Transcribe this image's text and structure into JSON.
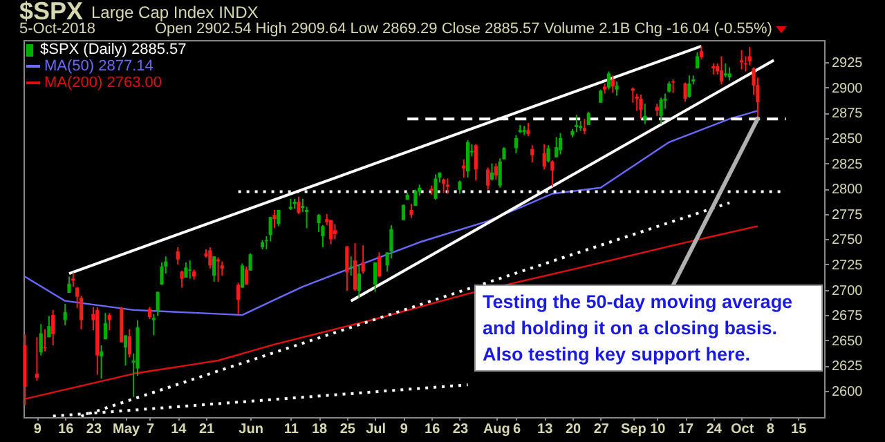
{
  "chart_data": {
    "type": "candlestick",
    "title": "$SPX",
    "subtitle": "Large Cap Index INDX",
    "annotations": [
      "5-Oct-2018",
      "Open 2902.54 High 2909.64 Low 2869.29 Close 2885.57 Volume 2.1B Chg -16.04 (-0.55%)",
      {
        "text": "Testing the 50-day moving average and holding it on a closing basis. Also testing key support here.",
        "x": "2018-10-05",
        "y": 2869.29
      }
    ],
    "xlim": [
      "2018-04-05T16:00",
      "2018-10-21T12:00"
    ],
    "xticks": [
      {
        "value": "2018-04-09",
        "label": "9"
      },
      {
        "value": "2018-04-16",
        "label": "16"
      },
      {
        "value": "2018-04-23",
        "label": "23"
      },
      {
        "value": "2018-05-01",
        "label": "May"
      },
      {
        "value": "2018-05-07",
        "label": "7"
      },
      {
        "value": "2018-05-14",
        "label": "14"
      },
      {
        "value": "2018-05-21",
        "label": "21"
      },
      {
        "value": "2018-06-01",
        "label": "Jun"
      },
      {
        "value": "2018-06-11",
        "label": "11"
      },
      {
        "value": "2018-06-18",
        "label": "18"
      },
      {
        "value": "2018-06-25",
        "label": "25"
      },
      {
        "value": "2018-07-02",
        "label": "Jul"
      },
      {
        "value": "2018-07-09",
        "label": "9"
      },
      {
        "value": "2018-07-16",
        "label": "16"
      },
      {
        "value": "2018-07-23",
        "label": "23"
      },
      {
        "value": "2018-08-01",
        "label": "Aug"
      },
      {
        "value": "2018-08-06",
        "label": "6"
      },
      {
        "value": "2018-08-13",
        "label": "13"
      },
      {
        "value": "2018-08-20",
        "label": "20"
      },
      {
        "value": "2018-08-27",
        "label": "27"
      },
      {
        "value": "2018-09-04",
        "label": "Sep"
      },
      {
        "value": "2018-09-10",
        "label": "10"
      },
      {
        "value": "2018-09-17",
        "label": "17"
      },
      {
        "value": "2018-09-24",
        "label": "24"
      },
      {
        "value": "2018-10-01",
        "label": "Oct"
      },
      {
        "value": "2018-10-08",
        "label": "8"
      },
      {
        "value": "2018-10-15",
        "label": "15"
      }
    ],
    "ylim": [
      2574,
      2947
    ],
    "yticks": [
      2600,
      2625,
      2650,
      2675,
      2700,
      2725,
      2750,
      2775,
      2800,
      2825,
      2850,
      2875,
      2900,
      2925
    ],
    "legend": "top left",
    "series": [
      {
        "name": "$SPX (Daily) 2885.57",
        "type": "candlestick",
        "color": "#00b000",
        "x": [
          "2018-04-06",
          "2018-04-09",
          "2018-04-10",
          "2018-04-11",
          "2018-04-12",
          "2018-04-13",
          "2018-04-16",
          "2018-04-17",
          "2018-04-18",
          "2018-04-19",
          "2018-04-20",
          "2018-04-23",
          "2018-04-24",
          "2018-04-25",
          "2018-04-26",
          "2018-04-27",
          "2018-04-30",
          "2018-05-01",
          "2018-05-02",
          "2018-05-03",
          "2018-05-04",
          "2018-05-07",
          "2018-05-08",
          "2018-05-09",
          "2018-05-10",
          "2018-05-11",
          "2018-05-14",
          "2018-05-15",
          "2018-05-16",
          "2018-05-17",
          "2018-05-18",
          "2018-05-21",
          "2018-05-22",
          "2018-05-23",
          "2018-05-24",
          "2018-05-25",
          "2018-05-29",
          "2018-05-30",
          "2018-05-31",
          "2018-06-01",
          "2018-06-04",
          "2018-06-05",
          "2018-06-06",
          "2018-06-07",
          "2018-06-08",
          "2018-06-11",
          "2018-06-12",
          "2018-06-13",
          "2018-06-14",
          "2018-06-15",
          "2018-06-18",
          "2018-06-19",
          "2018-06-20",
          "2018-06-21",
          "2018-06-22",
          "2018-06-25",
          "2018-06-26",
          "2018-06-27",
          "2018-06-28",
          "2018-06-29",
          "2018-07-02",
          "2018-07-03",
          "2018-07-05",
          "2018-07-06",
          "2018-07-09",
          "2018-07-10",
          "2018-07-11",
          "2018-07-12",
          "2018-07-13",
          "2018-07-16",
          "2018-07-17",
          "2018-07-18",
          "2018-07-19",
          "2018-07-20",
          "2018-07-23",
          "2018-07-24",
          "2018-07-25",
          "2018-07-26",
          "2018-07-27",
          "2018-07-30",
          "2018-07-31",
          "2018-08-01",
          "2018-08-02",
          "2018-08-03",
          "2018-08-06",
          "2018-08-07",
          "2018-08-08",
          "2018-08-09",
          "2018-08-10",
          "2018-08-13",
          "2018-08-14",
          "2018-08-15",
          "2018-08-16",
          "2018-08-17",
          "2018-08-20",
          "2018-08-21",
          "2018-08-22",
          "2018-08-23",
          "2018-08-24",
          "2018-08-27",
          "2018-08-28",
          "2018-08-29",
          "2018-08-30",
          "2018-08-31",
          "2018-09-04",
          "2018-09-05",
          "2018-09-06",
          "2018-09-07",
          "2018-09-10",
          "2018-09-11",
          "2018-09-12",
          "2018-09-13",
          "2018-09-14",
          "2018-09-17",
          "2018-09-18",
          "2018-09-19",
          "2018-09-20",
          "2018-09-21",
          "2018-09-24",
          "2018-09-25",
          "2018-09-26",
          "2018-09-27",
          "2018-09-28",
          "2018-10-01",
          "2018-10-02",
          "2018-10-03",
          "2018-10-04",
          "2018-10-05"
        ],
        "ohlc": [
          [
            2645,
            2656,
            2586,
            2604
          ],
          [
            2617,
            2653,
            2610,
            2613
          ],
          [
            2638,
            2666,
            2635,
            2657
          ],
          [
            2643,
            2661,
            2639,
            2642
          ],
          [
            2653,
            2674,
            2653,
            2664
          ],
          [
            2675,
            2680,
            2645,
            2656
          ],
          [
            2670,
            2686,
            2665,
            2678
          ],
          [
            2697,
            2713,
            2697,
            2706
          ],
          [
            2711,
            2717,
            2703,
            2709
          ],
          [
            2702,
            2703,
            2682,
            2693
          ],
          [
            2692,
            2694,
            2661,
            2670
          ],
          [
            2676,
            2683,
            2660,
            2670
          ],
          [
            2680,
            2683,
            2616,
            2635
          ],
          [
            2634,
            2645,
            2612,
            2639
          ],
          [
            2651,
            2677,
            2651,
            2667
          ],
          [
            2675,
            2677,
            2660,
            2670
          ],
          [
            2682,
            2683,
            2648,
            2648
          ],
          [
            2643,
            2655,
            2625,
            2655
          ],
          [
            2654,
            2661,
            2633,
            2636
          ],
          [
            2628,
            2637,
            2594,
            2630
          ],
          [
            2622,
            2670,
            2615,
            2663
          ],
          [
            2681,
            2683,
            2671,
            2673
          ],
          [
            2670,
            2676,
            2655,
            2672
          ],
          [
            2679,
            2698,
            2674,
            2698
          ],
          [
            2705,
            2727,
            2705,
            2723
          ],
          [
            2723,
            2733,
            2716,
            2728
          ],
          [
            2738,
            2742,
            2725,
            2730
          ],
          [
            2718,
            2719,
            2702,
            2711
          ],
          [
            2712,
            2727,
            2712,
            2722
          ],
          [
            2719,
            2729,
            2711,
            2720
          ],
          [
            2718,
            2720,
            2710,
            2713
          ],
          [
            2736,
            2740,
            2732,
            2733
          ],
          [
            2739,
            2742,
            2721,
            2724
          ],
          [
            2714,
            2733,
            2708,
            2733
          ],
          [
            2730,
            2732,
            2708,
            2728
          ],
          [
            2724,
            2728,
            2714,
            2721
          ],
          [
            2705,
            2707,
            2676,
            2690
          ],
          [
            2702,
            2726,
            2702,
            2724
          ],
          [
            2720,
            2723,
            2705,
            2705
          ],
          [
            2719,
            2736,
            2719,
            2735
          ],
          [
            2742,
            2749,
            2740,
            2747
          ],
          [
            2748,
            2753,
            2740,
            2749
          ],
          [
            2754,
            2772,
            2748,
            2772
          ],
          [
            2774,
            2779,
            2761,
            2770
          ],
          [
            2765,
            2779,
            2763,
            2779
          ],
          [
            2780,
            2790,
            2779,
            2782
          ],
          [
            2785,
            2790,
            2780,
            2787
          ],
          [
            2787,
            2792,
            2775,
            2776
          ],
          [
            2781,
            2790,
            2777,
            2783
          ],
          [
            2777,
            2782,
            2761,
            2779
          ],
          [
            2766,
            2775,
            2757,
            2774
          ],
          [
            2753,
            2764,
            2742,
            2763
          ],
          [
            2770,
            2775,
            2764,
            2767
          ],
          [
            2769,
            2769,
            2745,
            2750
          ],
          [
            2759,
            2765,
            2750,
            2755
          ],
          [
            2743,
            2743,
            2699,
            2717
          ],
          [
            2722,
            2733,
            2714,
            2723
          ],
          [
            2729,
            2746,
            2699,
            2700
          ],
          [
            2699,
            2725,
            2692,
            2716
          ],
          [
            2727,
            2744,
            2716,
            2718
          ],
          [
            2705,
            2727,
            2698,
            2727
          ],
          [
            2733,
            2737,
            2713,
            2713
          ],
          [
            2724,
            2737,
            2718,
            2737
          ],
          [
            2738,
            2764,
            2731,
            2760
          ],
          [
            2769,
            2784,
            2769,
            2784
          ],
          [
            2789,
            2796,
            2789,
            2794
          ],
          [
            2779,
            2785,
            2771,
            2774
          ],
          [
            2783,
            2799,
            2783,
            2798
          ],
          [
            2797,
            2804,
            2793,
            2801
          ],
          [
            2800,
            2803,
            2794,
            2798
          ],
          [
            2790,
            2814,
            2789,
            2810
          ],
          [
            2811,
            2816,
            2806,
            2816
          ],
          [
            2809,
            2810,
            2796,
            2805
          ],
          [
            2804,
            2810,
            2795,
            2802
          ],
          [
            2799,
            2808,
            2795,
            2807
          ],
          [
            2823,
            2829,
            2811,
            2820
          ],
          [
            2817,
            2848,
            2811,
            2846
          ],
          [
            2836,
            2844,
            2832,
            2837
          ],
          [
            2843,
            2844,
            2808,
            2819
          ],
          [
            2819,
            2821,
            2799,
            2803
          ],
          [
            2809,
            2825,
            2808,
            2816
          ],
          [
            2822,
            2825,
            2809,
            2813
          ],
          [
            2803,
            2830,
            2801,
            2827
          ],
          [
            2829,
            2841,
            2829,
            2840
          ],
          [
            2840,
            2853,
            2835,
            2850
          ],
          [
            2856,
            2863,
            2855,
            2858
          ],
          [
            2856,
            2862,
            2853,
            2858
          ],
          [
            2858,
            2865,
            2852,
            2854
          ],
          [
            2839,
            2843,
            2826,
            2833
          ],
          [
            2835,
            2844,
            2819,
            2822
          ],
          [
            2827,
            2843,
            2826,
            2840
          ],
          [
            2827,
            2828,
            2802,
            2818
          ],
          [
            2831,
            2851,
            2831,
            2841
          ],
          [
            2838,
            2855,
            2834,
            2850
          ],
          [
            2853,
            2859,
            2851,
            2857
          ],
          [
            2861,
            2873,
            2856,
            2863
          ],
          [
            2860,
            2867,
            2857,
            2862
          ],
          [
            2860,
            2869,
            2854,
            2857
          ],
          [
            2863,
            2876,
            2863,
            2875
          ],
          [
            2885,
            2898,
            2885,
            2897
          ],
          [
            2901,
            2904,
            2894,
            2898
          ],
          [
            2900,
            2916,
            2898,
            2914
          ],
          [
            2908,
            2912,
            2895,
            2901
          ],
          [
            2898,
            2906,
            2892,
            2902
          ],
          [
            2899,
            2900,
            2885,
            2897
          ],
          [
            2891,
            2894,
            2877,
            2889
          ],
          [
            2889,
            2893,
            2869,
            2878
          ],
          [
            2868,
            2884,
            2864,
            2872
          ],
          [
            2881,
            2884,
            2872,
            2877
          ],
          [
            2872,
            2890,
            2864,
            2888
          ],
          [
            2887,
            2894,
            2879,
            2889
          ],
          [
            2896,
            2906,
            2895,
            2904
          ],
          [
            2906,
            2908,
            2895,
            2905
          ],
          [
            2904,
            2905,
            2886,
            2889
          ],
          [
            2891,
            2912,
            2890,
            2904
          ],
          [
            2906,
            2912,
            2903,
            2908
          ],
          [
            2919,
            2935,
            2919,
            2931
          ],
          [
            2936,
            2941,
            2928,
            2930
          ],
          [
            2921,
            2924,
            2913,
            2919
          ],
          [
            2921,
            2924,
            2913,
            2916
          ],
          [
            2917,
            2931,
            2903,
            2906
          ],
          [
            2912,
            2924,
            2910,
            2914
          ],
          [
            2910,
            2920,
            2907,
            2914
          ],
          [
            2927,
            2937,
            2918,
            2925
          ],
          [
            2924,
            2931,
            2916,
            2923
          ],
          [
            2931,
            2940,
            2922,
            2926
          ],
          [
            2919,
            2920,
            2893,
            2902
          ],
          [
            2902.54,
            2909.64,
            2869.29,
            2885.57
          ]
        ],
        "colors": [
          "#ff1a1a",
          "#ff1a1a",
          "#00b000",
          "#ff1a1a",
          "#00b000",
          "#ff1a1a",
          "#00b000",
          "#00b000",
          "#ff1a1a",
          "#ff1a1a",
          "#ff1a1a",
          "#ff1a1a",
          "#ff1a1a",
          "#00b000",
          "#00b000",
          "#ff1a1a",
          "#ff1a1a",
          "#00b000",
          "#ff1a1a",
          "#00b000",
          "#00b000",
          "#ff1a1a",
          "#00b000",
          "#00b000",
          "#00b000",
          "#00b000",
          "#ff1a1a",
          "#ff1a1a",
          "#00b000",
          "#00b000",
          "#ff1a1a",
          "#ff1a1a",
          "#ff1a1a",
          "#00b000",
          "#ff1a1a",
          "#ff1a1a",
          "#ff1a1a",
          "#00b000",
          "#ff1a1a",
          "#00b000",
          "#00b000",
          "#00b000",
          "#00b000",
          "#ff1a1a",
          "#00b000",
          "#00b000",
          "#00b000",
          "#ff1a1a",
          "#00b000",
          "#00b000",
          "#00b000",
          "#00b000",
          "#ff1a1a",
          "#ff1a1a",
          "#ff1a1a",
          "#ff1a1a",
          "#00b000",
          "#ff1a1a",
          "#00b000",
          "#ff1a1a",
          "#00b000",
          "#ff1a1a",
          "#00b000",
          "#00b000",
          "#00b000",
          "#00b000",
          "#ff1a1a",
          "#00b000",
          "#00b000",
          "#ff1a1a",
          "#00b000",
          "#00b000",
          "#ff1a1a",
          "#ff1a1a",
          "#00b000",
          "#ff1a1a",
          "#00b000",
          "#00b000",
          "#ff1a1a",
          "#ff1a1a",
          "#00b000",
          "#ff1a1a",
          "#00b000",
          "#00b000",
          "#00b000",
          "#00b000",
          "#00b000",
          "#ff1a1a",
          "#ff1a1a",
          "#ff1a1a",
          "#00b000",
          "#ff1a1a",
          "#00b000",
          "#00b000",
          "#00b000",
          "#00b000",
          "#00b000",
          "#ff1a1a",
          "#00b000",
          "#00b000",
          "#ff1a1a",
          "#00b000",
          "#ff1a1a",
          "#00b000",
          "#ff1a1a",
          "#ff1a1a",
          "#ff1a1a",
          "#00b000",
          "#ff1a1a",
          "#00b000",
          "#00b000",
          "#00b000",
          "#ff1a1a",
          "#ff1a1a",
          "#00b000",
          "#00b000",
          "#00b000",
          "#ff1a1a",
          "#ff1a1a",
          "#ff1a1a",
          "#ff1a1a",
          "#00b000",
          "#00b000",
          "#ff1a1a",
          "#ff1a1a",
          "#ff1a1a",
          "#ff1a1a",
          "#ff1a1a"
        ]
      },
      {
        "name": "MA(50) 2877.14",
        "type": "line",
        "color": "#6a6aff",
        "x": [
          "2018-04-06",
          "2018-04-16",
          "2018-05-03",
          "2018-05-30",
          "2018-06-07",
          "2018-06-14",
          "2018-06-25",
          "2018-07-13",
          "2018-07-30",
          "2018-08-08",
          "2018-08-15",
          "2018-08-27",
          "2018-09-13",
          "2018-09-28",
          "2018-10-05"
        ],
        "values": [
          2713,
          2689,
          2680,
          2675,
          2690,
          2703,
          2720,
          2747,
          2768,
          2783,
          2795,
          2801,
          2846,
          2869,
          2877
        ]
      },
      {
        "name": "MA(200) 2763.00",
        "type": "line",
        "color": "#e01010",
        "x": [
          "2018-04-06",
          "2018-05-03",
          "2018-05-24",
          "2018-06-07",
          "2018-07-02",
          "2018-07-25",
          "2018-08-22",
          "2018-09-13",
          "2018-10-05"
        ],
        "values": [
          2592,
          2617,
          2630,
          2646,
          2671,
          2696,
          2722,
          2743,
          2763
        ]
      },
      {
        "type": "line",
        "color": "#ffffff",
        "line_style": "solid",
        "x": [
          "2018-04-17",
          "2018-09-21"
        ],
        "values": [
          2716,
          2941
        ]
      },
      {
        "type": "line",
        "color": "#ffffff",
        "line_style": "solid",
        "x": [
          "2018-06-26",
          "2018-10-09"
        ],
        "values": [
          2689,
          2927
        ]
      },
      {
        "type": "line",
        "color": "#ffffff",
        "line_style": "dashed",
        "x": [
          "2018-07-10",
          "2018-10-12"
        ],
        "values": [
          2869,
          2869
        ]
      },
      {
        "type": "line",
        "color": "#ffffff",
        "line_style": "dotted",
        "x": [
          "2018-05-29",
          "2018-10-11"
        ],
        "values": [
          2797,
          2797
        ]
      },
      {
        "type": "line",
        "color": "#ffffff",
        "line_style": "dotted",
        "x": [
          "2018-04-20",
          "2018-09-28"
        ],
        "values": [
          2575,
          2786
        ]
      },
      {
        "type": "line",
        "color": "#ffffff",
        "line_style": "dotted",
        "x": [
          "2018-04-13",
          "2018-07-25"
        ],
        "values": [
          2575,
          2606
        ]
      }
    ]
  }
}
